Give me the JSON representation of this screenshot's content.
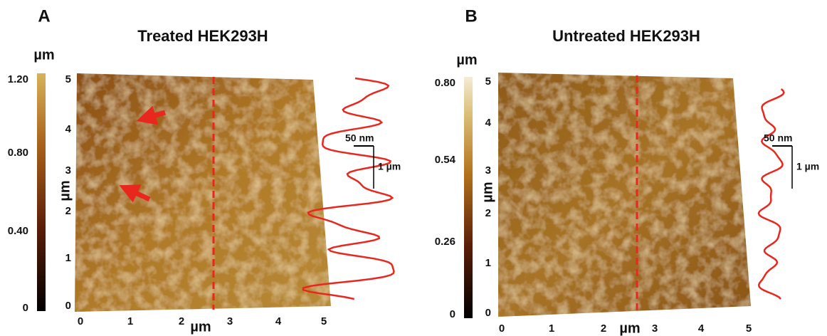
{
  "panels": [
    {
      "label": "A",
      "title": "Treated HEK293H",
      "colorbar": {
        "unit": "µm",
        "ticks": [
          "1.20",
          "0.80",
          "0.40",
          "0"
        ]
      },
      "y_axis": {
        "label": "µm",
        "ticks": [
          "0",
          "1",
          "2",
          "3",
          "4",
          "5"
        ]
      },
      "x_axis": {
        "label": "µm",
        "ticks": [
          "0",
          "1",
          "2",
          "3",
          "4",
          "5"
        ]
      },
      "scale_bar": {
        "height": "50 nm",
        "length": "1 µm"
      }
    },
    {
      "label": "B",
      "title": "Untreated HEK293H",
      "colorbar": {
        "unit": "µm",
        "ticks": [
          "0.80",
          "0.54",
          "0.26",
          "0"
        ]
      },
      "y_axis": {
        "label": "µm",
        "ticks": [
          "0",
          "1",
          "2",
          "3",
          "4",
          "5"
        ]
      },
      "x_axis": {
        "label": "µm",
        "ticks": [
          "0",
          "1",
          "2",
          "3",
          "4",
          "5"
        ]
      },
      "scale_bar": {
        "height": "50 nm",
        "length": "1 µm"
      }
    }
  ]
}
